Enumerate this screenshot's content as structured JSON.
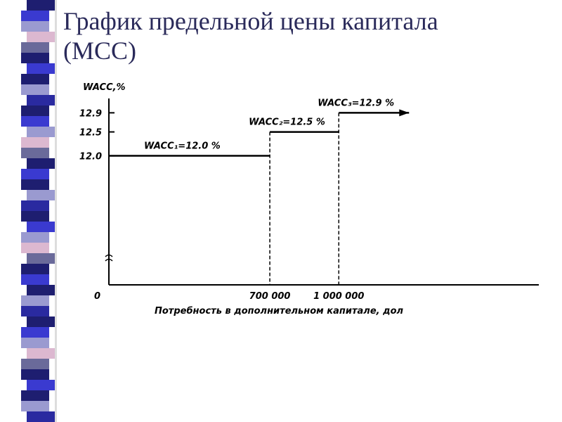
{
  "title": "График предельной цены капитала (MCC)",
  "chart_data": {
    "type": "step",
    "y_label": "WACC,%",
    "x_label": "Потребность в дополнительном капитале, дол",
    "x": [
      0,
      700000,
      1000000
    ],
    "values": [
      12.0,
      12.5,
      12.9
    ],
    "value_labels": [
      "WACC₁=12.0 %",
      "WACC₂=12.5 %",
      "WACC₃=12.9 %"
    ],
    "xlim": [
      0,
      1870000
    ],
    "xticks": [
      0,
      {
        "value": 700000,
        "label": "700 000"
      },
      {
        "value": 1000000,
        "label": "1 000 000"
      }
    ],
    "ylim": [
      9.3,
      13.2
    ],
    "yticks": [
      {
        "value": 12,
        "label": "12.0"
      },
      12.5,
      12.9
    ],
    "color": "#000000"
  }
}
